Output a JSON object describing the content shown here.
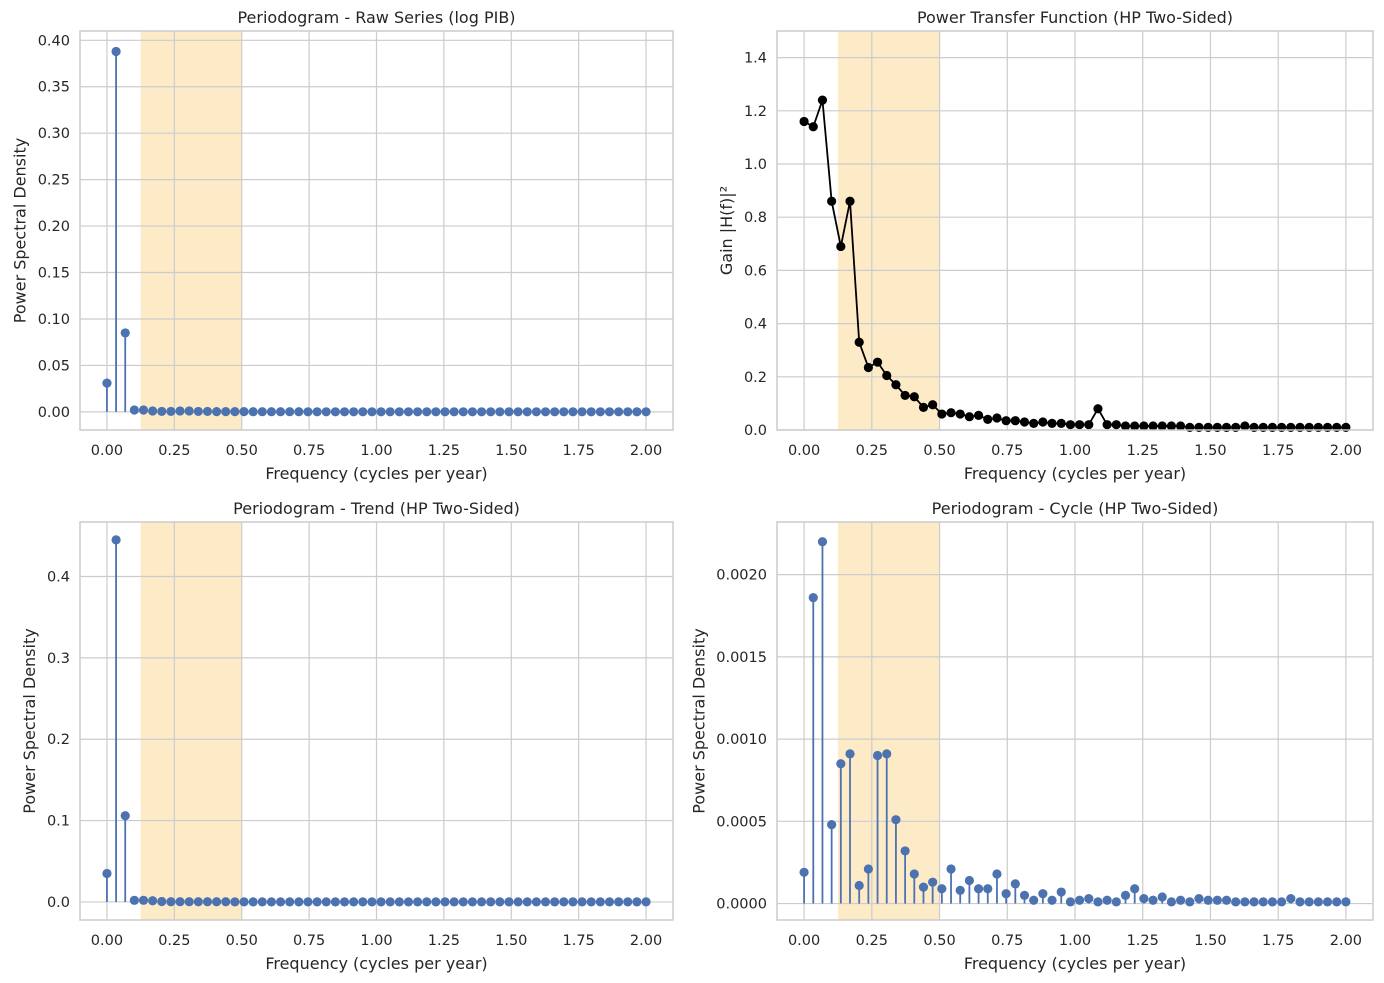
{
  "chart_data": [
    {
      "type": "stem",
      "title": "Periodogram - Raw Series (log PIB)",
      "xlabel": "Frequency (cycles per year)",
      "ylabel": "Power Spectral Density",
      "xlim": [
        -0.1,
        2.1
      ],
      "ylim": [
        -0.0195,
        0.41
      ],
      "xticks": [
        "0.00",
        "0.25",
        "0.50",
        "0.75",
        "1.00",
        "1.25",
        "1.50",
        "1.75",
        "2.00"
      ],
      "xtick_values": [
        0,
        0.25,
        0.5,
        0.75,
        1,
        1.25,
        1.5,
        1.75,
        2
      ],
      "yticks": [
        "0.00",
        "0.05",
        "0.10",
        "0.15",
        "0.20",
        "0.25",
        "0.30",
        "0.35",
        "0.40"
      ],
      "ytick_values": [
        0,
        0.05,
        0.1,
        0.15,
        0.2,
        0.25,
        0.3,
        0.35,
        0.4
      ],
      "highlight_band": [
        0.125,
        0.5
      ],
      "highlight_color": "#fdebc8",
      "color": "#4c72b0",
      "grid": true,
      "x": [
        0.0,
        0.0339,
        0.0678,
        0.1017,
        0.1356,
        0.1695,
        0.2034,
        0.2373,
        0.2712,
        0.3051,
        0.339,
        0.3729,
        0.4068,
        0.4407,
        0.4746,
        0.5085,
        0.5424,
        0.5763,
        0.6102,
        0.6441,
        0.678,
        0.7119,
        0.7458,
        0.7797,
        0.8136,
        0.8475,
        0.8814,
        0.9153,
        0.9492,
        0.9831,
        1.0169,
        1.0508,
        1.0847,
        1.1186,
        1.1525,
        1.1864,
        1.2203,
        1.2542,
        1.2881,
        1.322,
        1.3559,
        1.3898,
        1.4237,
        1.4576,
        1.4915,
        1.5254,
        1.5593,
        1.5932,
        1.6271,
        1.661,
        1.6949,
        1.7288,
        1.7627,
        1.7966,
        1.8305,
        1.8644,
        1.8983,
        1.9322,
        1.9661,
        2.0
      ],
      "values": [
        0.031,
        0.388,
        0.085,
        0.002,
        0.002,
        0.001,
        0.0005,
        0.0005,
        0.001,
        0.001,
        0.0005,
        0.0005,
        0.0003,
        0.0003,
        0.0003,
        0.0003,
        0.0002,
        0.0002,
        0.0002,
        0.0002,
        0.0002,
        0.0002,
        0.0001,
        0.0001,
        0.0001,
        0.0001,
        0.0001,
        0.0001,
        0.0001,
        0.0001,
        0.0001,
        0.0001,
        0.0001,
        0.0001,
        0.0001,
        0.0001,
        0.0001,
        0.0001,
        0.0001,
        0.0001,
        0.0001,
        0.0001,
        0.0001,
        0.0001,
        0.0001,
        0.0001,
        0.0001,
        0.0001,
        0.0001,
        0.0001,
        0.0001,
        0.0001,
        0.0001,
        0.0001,
        0.0001,
        0.0001,
        0.0001,
        0.0001,
        0.0001,
        0.0001
      ]
    },
    {
      "type": "line",
      "title": "Power Transfer Function (HP Two-Sided)",
      "xlabel": "Frequency (cycles per year)",
      "ylabel": "Gain |H(f)|²",
      "xlim": [
        -0.1,
        2.1
      ],
      "ylim": [
        0,
        1.5
      ],
      "xticks": [
        "0.00",
        "0.25",
        "0.50",
        "0.75",
        "1.00",
        "1.25",
        "1.50",
        "1.75",
        "2.00"
      ],
      "xtick_values": [
        0,
        0.25,
        0.5,
        0.75,
        1,
        1.25,
        1.5,
        1.75,
        2
      ],
      "yticks": [
        "0.0",
        "0.2",
        "0.4",
        "0.6",
        "0.8",
        "1.0",
        "1.2",
        "1.4"
      ],
      "ytick_values": [
        0,
        0.2,
        0.4,
        0.6,
        0.8,
        1.0,
        1.2,
        1.4
      ],
      "highlight_band": [
        0.125,
        0.5
      ],
      "highlight_color": "#fdebc8",
      "color": "#000000",
      "grid": true,
      "x": [
        0.0,
        0.0339,
        0.0678,
        0.1017,
        0.1356,
        0.1695,
        0.2034,
        0.2373,
        0.2712,
        0.3051,
        0.339,
        0.3729,
        0.4068,
        0.4407,
        0.4746,
        0.5085,
        0.5424,
        0.5763,
        0.6102,
        0.6441,
        0.678,
        0.7119,
        0.7458,
        0.7797,
        0.8136,
        0.8475,
        0.8814,
        0.9153,
        0.9492,
        0.9831,
        1.0169,
        1.0508,
        1.0847,
        1.1186,
        1.1525,
        1.1864,
        1.2203,
        1.2542,
        1.2881,
        1.322,
        1.3559,
        1.3898,
        1.4237,
        1.4576,
        1.4915,
        1.5254,
        1.5593,
        1.5932,
        1.6271,
        1.661,
        1.6949,
        1.7288,
        1.7627,
        1.7966,
        1.8305,
        1.8644,
        1.8983,
        1.9322,
        1.9661,
        2.0
      ],
      "values": [
        1.16,
        1.14,
        1.24,
        0.86,
        0.69,
        0.86,
        0.33,
        0.235,
        0.255,
        0.205,
        0.17,
        0.13,
        0.125,
        0.085,
        0.095,
        0.06,
        0.065,
        0.06,
        0.05,
        0.055,
        0.04,
        0.045,
        0.035,
        0.035,
        0.03,
        0.025,
        0.03,
        0.025,
        0.025,
        0.02,
        0.02,
        0.02,
        0.08,
        0.02,
        0.02,
        0.015,
        0.015,
        0.015,
        0.015,
        0.015,
        0.015,
        0.015,
        0.01,
        0.01,
        0.01,
        0.01,
        0.01,
        0.01,
        0.015,
        0.01,
        0.01,
        0.01,
        0.01,
        0.01,
        0.01,
        0.01,
        0.01,
        0.01,
        0.01,
        0.01
      ]
    },
    {
      "type": "stem",
      "title": "Periodogram - Trend (HP Two-Sided)",
      "xlabel": "Frequency (cycles per year)",
      "ylabel": "Power Spectral Density",
      "xlim": [
        -0.1,
        2.1
      ],
      "ylim": [
        -0.0222,
        0.467
      ],
      "xticks": [
        "0.00",
        "0.25",
        "0.50",
        "0.75",
        "1.00",
        "1.25",
        "1.50",
        "1.75",
        "2.00"
      ],
      "xtick_values": [
        0,
        0.25,
        0.5,
        0.75,
        1,
        1.25,
        1.5,
        1.75,
        2
      ],
      "yticks": [
        "0.0",
        "0.1",
        "0.2",
        "0.3",
        "0.4"
      ],
      "ytick_values": [
        0,
        0.1,
        0.2,
        0.3,
        0.4
      ],
      "highlight_band": [
        0.125,
        0.5
      ],
      "highlight_color": "#fdebc8",
      "color": "#4c72b0",
      "grid": true,
      "x": [
        0.0,
        0.0339,
        0.0678,
        0.1017,
        0.1356,
        0.1695,
        0.2034,
        0.2373,
        0.2712,
        0.3051,
        0.339,
        0.3729,
        0.4068,
        0.4407,
        0.4746,
        0.5085,
        0.5424,
        0.5763,
        0.6102,
        0.6441,
        0.678,
        0.7119,
        0.7458,
        0.7797,
        0.8136,
        0.8475,
        0.8814,
        0.9153,
        0.9492,
        0.9831,
        1.0169,
        1.0508,
        1.0847,
        1.1186,
        1.1525,
        1.1864,
        1.2203,
        1.2542,
        1.2881,
        1.322,
        1.3559,
        1.3898,
        1.4237,
        1.4576,
        1.4915,
        1.5254,
        1.5593,
        1.5932,
        1.6271,
        1.661,
        1.6949,
        1.7288,
        1.7627,
        1.7966,
        1.8305,
        1.8644,
        1.8983,
        1.9322,
        1.9661,
        2.0
      ],
      "values": [
        0.035,
        0.445,
        0.106,
        0.002,
        0.002,
        0.0015,
        0.0005,
        0.0003,
        0.0003,
        0.0003,
        0.0002,
        0.0002,
        0.0002,
        0.0002,
        0.0001,
        0.0001,
        0.0001,
        0.0001,
        0.0001,
        0.0001,
        0.0001,
        0.0001,
        0.0001,
        0.0001,
        0.0001,
        0.0001,
        0.0001,
        0.0001,
        0.0001,
        0.0001,
        0.0001,
        0.0001,
        0.0001,
        0.0001,
        0.0001,
        0.0001,
        0.0001,
        0.0001,
        0.0001,
        0.0001,
        0.0001,
        0.0001,
        0.0001,
        0.0001,
        0.0001,
        0.0001,
        0.0001,
        0.0001,
        0.0001,
        0.0001,
        0.0001,
        0.0001,
        0.0001,
        0.0001,
        0.0001,
        0.0001,
        0.0001,
        0.0001,
        0.0001,
        0.0001
      ]
    },
    {
      "type": "stem",
      "title": "Periodogram - Cycle (HP Two-Sided)",
      "xlabel": "Frequency (cycles per year)",
      "ylabel": "Power Spectral Density",
      "xlim": [
        -0.1,
        2.1
      ],
      "ylim": [
        -0.0001,
        0.00232
      ],
      "xticks": [
        "0.00",
        "0.25",
        "0.50",
        "0.75",
        "1.00",
        "1.25",
        "1.50",
        "1.75",
        "2.00"
      ],
      "xtick_values": [
        0,
        0.25,
        0.5,
        0.75,
        1,
        1.25,
        1.5,
        1.75,
        2
      ],
      "yticks": [
        "0.0000",
        "0.0005",
        "0.0010",
        "0.0015",
        "0.0020"
      ],
      "ytick_values": [
        0,
        0.0005,
        0.001,
        0.0015,
        0.002
      ],
      "highlight_band": [
        0.125,
        0.5
      ],
      "highlight_color": "#fdebc8",
      "color": "#4c72b0",
      "grid": true,
      "x": [
        0.0,
        0.0339,
        0.0678,
        0.1017,
        0.1356,
        0.1695,
        0.2034,
        0.2373,
        0.2712,
        0.3051,
        0.339,
        0.3729,
        0.4068,
        0.4407,
        0.4746,
        0.5085,
        0.5424,
        0.5763,
        0.6102,
        0.6441,
        0.678,
        0.7119,
        0.7458,
        0.7797,
        0.8136,
        0.8475,
        0.8814,
        0.9153,
        0.9492,
        0.9831,
        1.0169,
        1.0508,
        1.0847,
        1.1186,
        1.1525,
        1.1864,
        1.2203,
        1.2542,
        1.2881,
        1.322,
        1.3559,
        1.3898,
        1.4237,
        1.4576,
        1.4915,
        1.5254,
        1.5593,
        1.5932,
        1.6271,
        1.661,
        1.6949,
        1.7288,
        1.7627,
        1.7966,
        1.8305,
        1.8644,
        1.8983,
        1.9322,
        1.9661,
        2.0
      ],
      "values": [
        0.00019,
        0.00186,
        0.0022,
        0.00048,
        0.00085,
        0.00091,
        0.00011,
        0.00021,
        0.0009,
        0.00091,
        0.00051,
        0.00032,
        0.00018,
        0.0001,
        0.00013,
        9e-05,
        0.00021,
        8e-05,
        0.00014,
        9e-05,
        9e-05,
        0.00018,
        6e-05,
        0.00012,
        5e-05,
        2e-05,
        6e-05,
        2e-05,
        7e-05,
        1e-05,
        2e-05,
        3e-05,
        1e-05,
        2e-05,
        1e-05,
        5e-05,
        9e-05,
        3e-05,
        2e-05,
        4e-05,
        1e-05,
        2e-05,
        1e-05,
        3e-05,
        2e-05,
        2e-05,
        2e-05,
        1e-05,
        1e-05,
        1e-05,
        1e-05,
        1e-05,
        1e-05,
        3e-05,
        1e-05,
        1e-05,
        1e-05,
        1e-05,
        1e-05,
        1e-05
      ]
    }
  ]
}
